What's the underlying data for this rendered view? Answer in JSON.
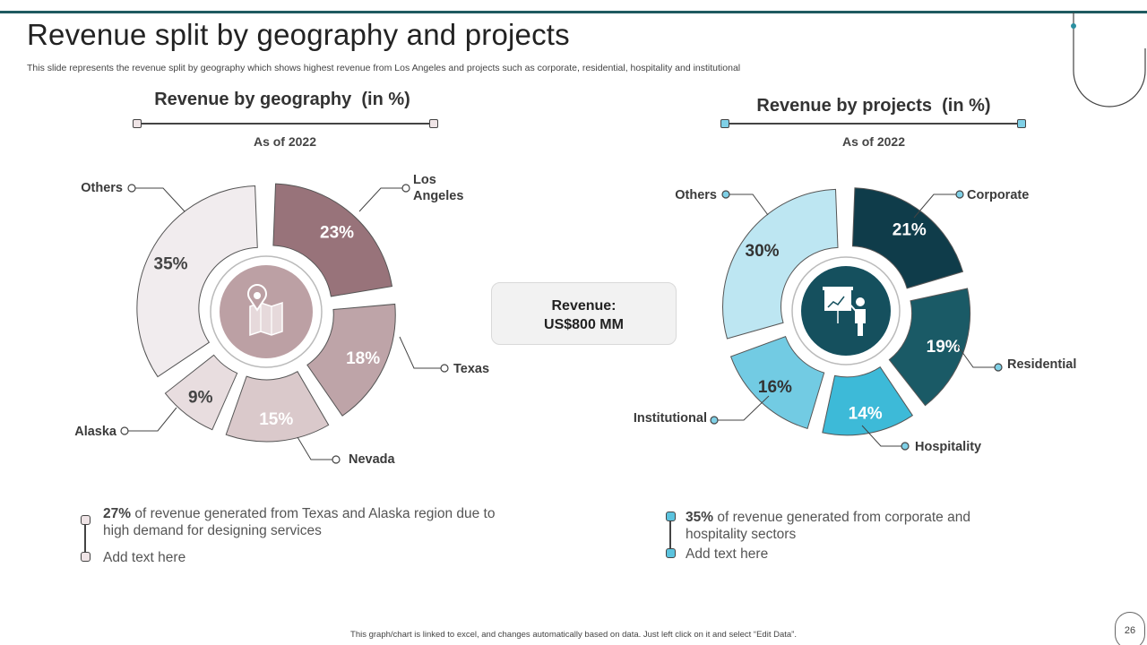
{
  "slide": {
    "title": "Revenue split by geography and projects",
    "subtitle": "This slide represents the revenue split by geography which shows highest revenue from Los Angeles and projects such as corporate, residential, hospitality and institutional",
    "footer": "This graph/chart is linked to excel, and changes automatically based on data. Just left click on it and select “Edit Data”.",
    "page_number": "26"
  },
  "revenue_box": {
    "label": "Revenue:",
    "value": "US$800 MM"
  },
  "notes": {
    "geography": {
      "highlight": "27%",
      "text": " of revenue  generated from Texas and Alaska region due to high demand for designing services",
      "placeholder": "Add text here"
    },
    "projects": {
      "highlight": "35%",
      "text": " of revenue  generated from corporate and hospitality sectors",
      "placeholder": "Add text here"
    }
  },
  "icons": {
    "geography_center": "map-location-icon",
    "projects_center": "presentation-board-icon"
  },
  "chart_data": [
    {
      "type": "pie",
      "title": "Revenue by geography  (in %)",
      "subtitle": "As of 2022",
      "categories": [
        "Los Angeles",
        "Texas",
        "Nevada",
        "Alaska",
        "Others"
      ],
      "label_lines": [
        [
          "Los",
          "Angeles"
        ],
        [
          "Texas"
        ],
        [
          "Nevada"
        ],
        [
          "Alaska"
        ],
        [
          "Others"
        ]
      ],
      "values": [
        23,
        18,
        15,
        9,
        35
      ],
      "value_labels": [
        "23%",
        "18%",
        "15%",
        "9%",
        "35%"
      ],
      "colors": [
        "#98737a",
        "#bea4a8",
        "#dac9cb",
        "#e8dddf",
        "#f1ecee"
      ],
      "value_text_colors": [
        "#ffffff",
        "#ffffff",
        "#ffffff",
        "#444444",
        "#444444"
      ],
      "center_color": "#bca0a4",
      "rule_color": "#c9a9ae"
    },
    {
      "type": "pie",
      "title": "Revenue by projects  (in %)",
      "subtitle": "As of 2022",
      "categories": [
        "Corporate",
        "Residential",
        "Hospitality",
        "Institutional",
        "Others"
      ],
      "label_lines": [
        [
          "Corporate"
        ],
        [
          "Residential"
        ],
        [
          "Hospitality"
        ],
        [
          "Institutional"
        ],
        [
          "Others"
        ]
      ],
      "values": [
        21,
        19,
        14,
        16,
        30
      ],
      "value_labels": [
        "21%",
        "19%",
        "14%",
        "16%",
        "30%"
      ],
      "colors": [
        "#0f3c4a",
        "#1a5a66",
        "#3dbad8",
        "#72cbe3",
        "#bde6f2"
      ],
      "value_text_colors": [
        "#ffffff",
        "#ffffff",
        "#ffffff",
        "#333333",
        "#333333"
      ],
      "center_color": "#15505e",
      "rule_color": "#7fd0e6"
    }
  ]
}
